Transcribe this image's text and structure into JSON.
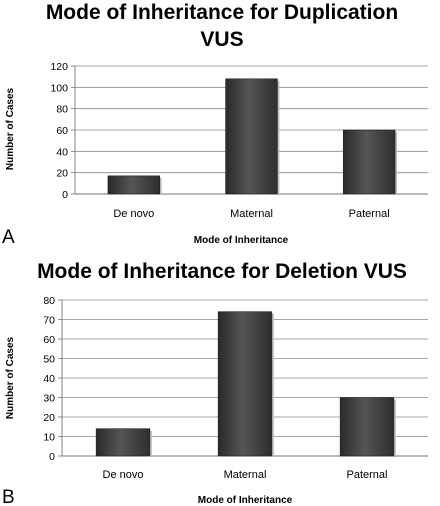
{
  "chart_data": [
    {
      "panel_label": "A",
      "type": "bar",
      "title_lines": [
        "Mode of Inheritance for Duplication",
        "VUS"
      ],
      "categories": [
        "De novo",
        "Maternal",
        "Paternal"
      ],
      "values": [
        17,
        108,
        60
      ],
      "xlabel": "Mode of Inheritance",
      "ylabel": "Number of Cases",
      "ylim": [
        0,
        120
      ],
      "yticks": [
        0,
        20,
        40,
        60,
        80,
        100,
        120
      ],
      "grid": true,
      "bar_color": "#3d3d3d"
    },
    {
      "panel_label": "B",
      "type": "bar",
      "title_lines": [
        "Mode of Inheritance for Deletion VUS"
      ],
      "categories": [
        "De novo",
        "Maternal",
        "Paternal"
      ],
      "values": [
        14,
        74,
        30
      ],
      "xlabel": "Mode of Inheritance",
      "ylabel": "Number of Cases",
      "ylim": [
        0,
        80
      ],
      "yticks": [
        0,
        10,
        20,
        30,
        40,
        50,
        60,
        70,
        80
      ],
      "grid": true,
      "bar_color": "#3d3d3d"
    }
  ]
}
